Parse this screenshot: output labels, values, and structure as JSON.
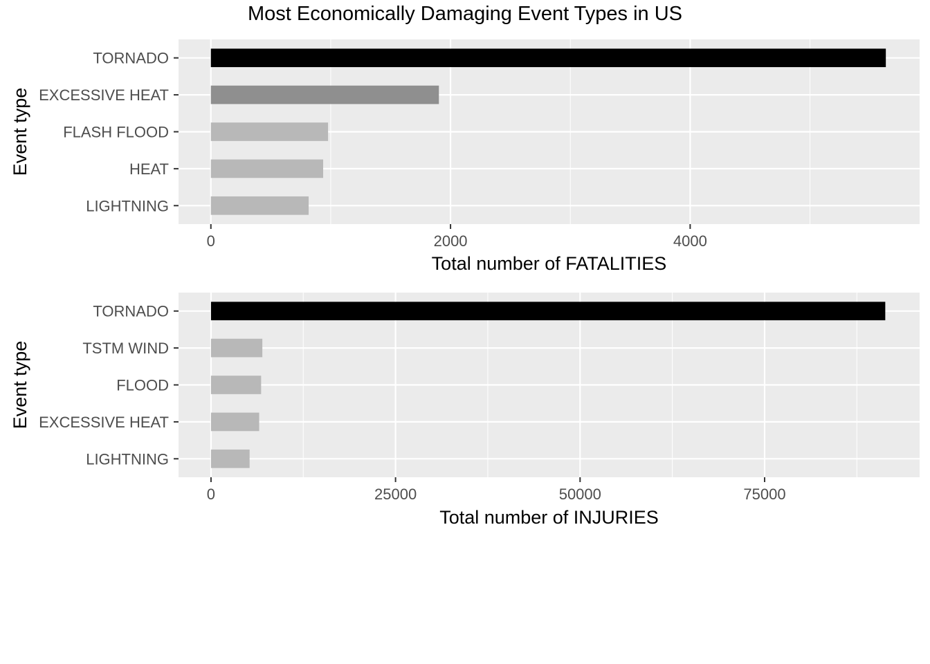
{
  "title": "Most Economically Damaging Event Types in US",
  "chart_data": [
    {
      "type": "bar",
      "orientation": "horizontal",
      "xlabel": "Total number of FATALITIES",
      "ylabel": "Event type",
      "categories": [
        "TORNADO",
        "EXCESSIVE HEAT",
        "FLASH FLOOD",
        "HEAT",
        "LIGHTNING"
      ],
      "values": [
        5633,
        1903,
        978,
        937,
        816
      ],
      "bar_colors": [
        "#000000",
        "#8f8f8f",
        "#b8b8b8",
        "#b8b8b8",
        "#b8b8b8"
      ],
      "xticks": [
        0,
        2000,
        4000
      ],
      "xtick_labels": [
        "0",
        "2000",
        "4000"
      ],
      "xlim": [
        -270,
        5915
      ],
      "grid": true
    },
    {
      "type": "bar",
      "orientation": "horizontal",
      "xlabel": "Total number of INJURIES",
      "ylabel": "Event type",
      "categories": [
        "TORNADO",
        "TSTM WIND",
        "FLOOD",
        "EXCESSIVE HEAT",
        "LIGHTNING"
      ],
      "values": [
        91346,
        6957,
        6789,
        6525,
        5230
      ],
      "bar_colors": [
        "#000000",
        "#b8b8b8",
        "#b8b8b8",
        "#b8b8b8",
        "#b8b8b8"
      ],
      "xticks": [
        0,
        25000,
        50000,
        75000
      ],
      "xtick_labels": [
        "0",
        "25000",
        "50000",
        "75000"
      ],
      "xlim": [
        -4400,
        96000
      ],
      "grid": true
    }
  ]
}
